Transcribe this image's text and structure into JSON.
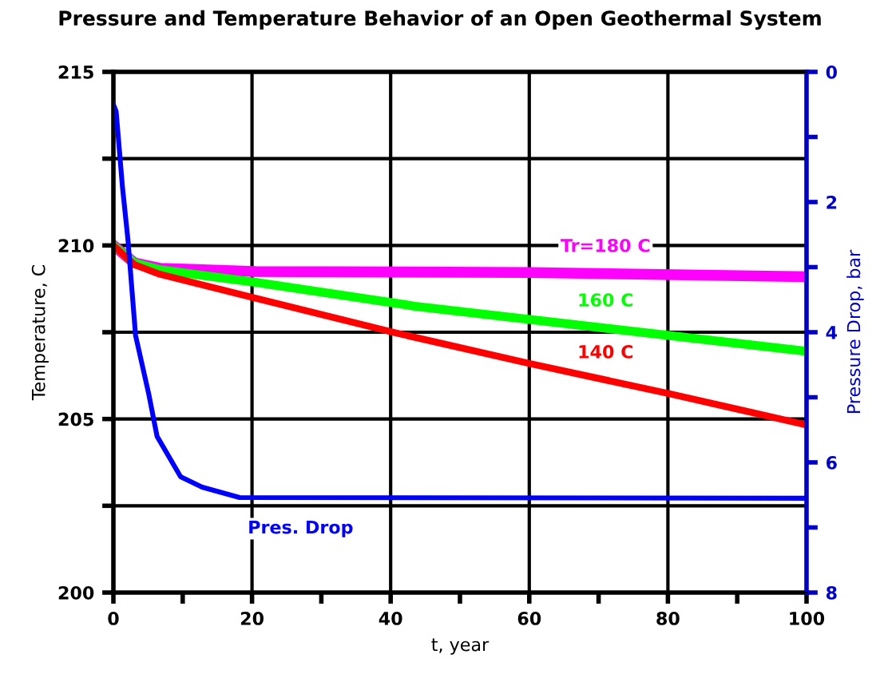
{
  "chart_data": {
    "type": "line",
    "title": "Pressure and Temperature Behavior of an Open Geothermal System",
    "xlabel": "t, year",
    "ylabel": "Temperature, C",
    "y2label": "Pressure Drop, bar",
    "xlim": [
      0,
      100
    ],
    "xticks": [
      0,
      {
        "value": 10,
        "label": null
      },
      20,
      {
        "value": 30,
        "label": null
      },
      40,
      {
        "value": 50,
        "label": null
      },
      60,
      {
        "value": 70,
        "label": null
      },
      80,
      {
        "value": 90,
        "label": null
      },
      100
    ],
    "ylim": [
      200,
      215
    ],
    "yticks": [
      200,
      {
        "value": 202.5,
        "label": null
      },
      205,
      {
        "value": 207.5,
        "label": null
      },
      210,
      {
        "value": 212.5,
        "label": null
      },
      215
    ],
    "y2lim": [
      8,
      0
    ],
    "y2ticks": [
      0,
      {
        "value": 1,
        "label": null
      },
      2,
      {
        "value": 3,
        "label": null
      },
      4,
      {
        "value": 5,
        "label": null
      },
      6,
      {
        "value": 7,
        "label": null
      },
      8
    ],
    "grid": true,
    "legend": false,
    "marker": "none",
    "line_style": "solid",
    "series": [
      {
        "name": "Tr=180 C",
        "color": "#ff00ff",
        "x": [
          0,
          3,
          6.7,
          20.5,
          60,
          100
        ],
        "values": [
          210,
          209.5,
          209.34,
          209.25,
          209.22,
          209.1
        ]
      },
      {
        "name": "160 C",
        "color": "#00ff00",
        "x": [
          0,
          3,
          6.7,
          20.5,
          43.5,
          100
        ],
        "values": [
          210,
          209.5,
          209.3,
          208.94,
          208.25,
          206.95
        ]
      },
      {
        "name": "140 C",
        "color": "#ff0000",
        "x": [
          0,
          3,
          6.7,
          20.5,
          40.5,
          60,
          80.4,
          100
        ],
        "values": [
          210,
          209.45,
          209.17,
          208.48,
          207.49,
          206.6,
          205.72,
          204.83
        ]
      },
      {
        "name": "Pres. Drop",
        "color": "#0000ff",
        "axis": "y2",
        "x": [
          0,
          0.4,
          1.3,
          2.1,
          3.2,
          5.1,
          6.3,
          9.7,
          12.8,
          18.2,
          100
        ],
        "values": [
          0.5,
          0.61,
          1.76,
          2.58,
          4.05,
          4.95,
          5.6,
          6.22,
          6.38,
          6.54,
          6.55
        ]
      }
    ]
  }
}
